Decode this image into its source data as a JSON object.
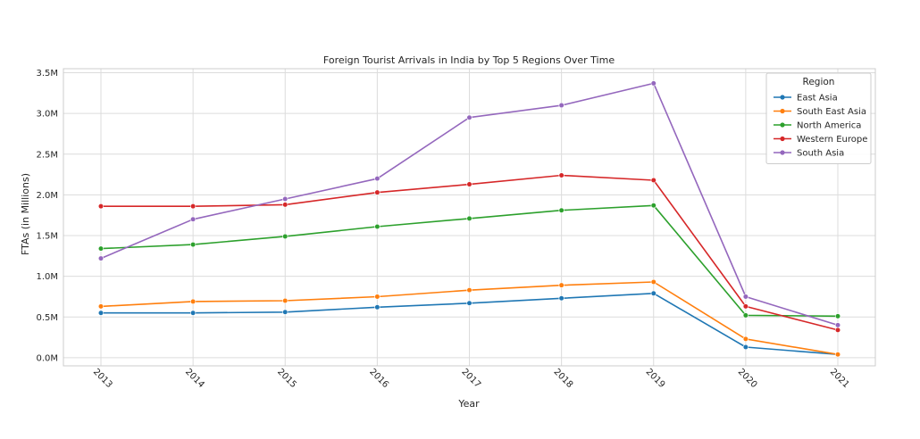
{
  "chart_data": {
    "type": "line",
    "title": "Foreign Tourist Arrivals in India by Top 5 Regions Over Time",
    "xlabel": "Year",
    "ylabel": "FTAs (in Millions)",
    "x": [
      "2013",
      "2014",
      "2015",
      "2016",
      "2017",
      "2018",
      "2019",
      "2020",
      "2021"
    ],
    "ylim": [
      -0.1,
      3.55
    ],
    "yticks": [
      0.0,
      0.5,
      1.0,
      1.5,
      2.0,
      2.5,
      3.0,
      3.5
    ],
    "ytick_labels": [
      "0.0M",
      "0.5M",
      "1.0M",
      "1.5M",
      "2.0M",
      "2.5M",
      "3.0M",
      "3.5M"
    ],
    "grid": true,
    "legend": {
      "title": "Region",
      "placement": "top-right"
    },
    "series": [
      {
        "name": "East Asia",
        "color": "#1f77b4",
        "values": [
          0.55,
          0.55,
          0.56,
          0.62,
          0.67,
          0.73,
          0.79,
          0.13,
          0.04
        ]
      },
      {
        "name": "South East Asia",
        "color": "#ff7f0e",
        "values": [
          0.63,
          0.69,
          0.7,
          0.75,
          0.83,
          0.89,
          0.93,
          0.23,
          0.04
        ]
      },
      {
        "name": "North America",
        "color": "#2ca02c",
        "values": [
          1.34,
          1.39,
          1.49,
          1.61,
          1.71,
          1.81,
          1.87,
          0.52,
          0.51
        ]
      },
      {
        "name": "Western Europe",
        "color": "#d62728",
        "values": [
          1.86,
          1.86,
          1.88,
          2.03,
          2.13,
          2.24,
          2.18,
          0.63,
          0.34
        ]
      },
      {
        "name": "South Asia",
        "color": "#9467bd",
        "values": [
          1.22,
          1.7,
          1.95,
          2.2,
          2.95,
          3.1,
          3.37,
          0.75,
          0.4
        ]
      }
    ]
  }
}
